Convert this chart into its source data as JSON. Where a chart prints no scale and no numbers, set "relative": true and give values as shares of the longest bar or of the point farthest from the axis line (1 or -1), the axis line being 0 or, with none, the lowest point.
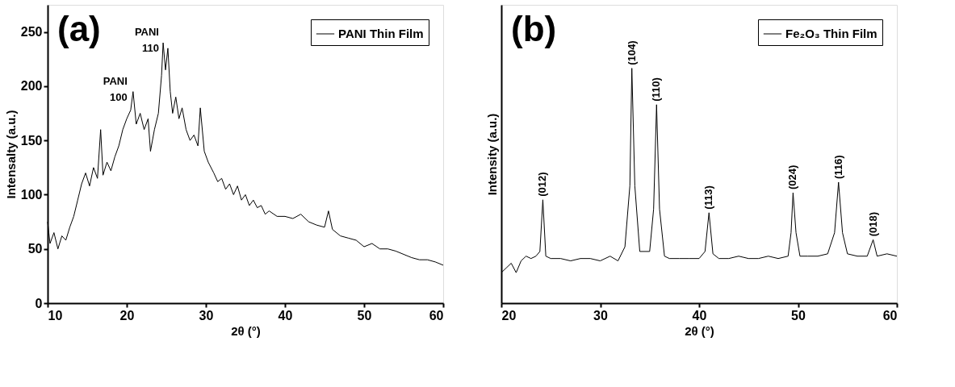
{
  "chart_data": [
    {
      "type": "line",
      "xlabel": "2θ (°)",
      "ylabel": "Intensalty (a.u.)",
      "xlim": [
        10,
        60
      ],
      "xticks": [
        10,
        20,
        30,
        40,
        50,
        60
      ],
      "ylim": [
        0,
        275
      ],
      "yticks": [
        0,
        50,
        100,
        150,
        200,
        250
      ],
      "legend": "top right",
      "grid": false,
      "annotations": [
        "(a)",
        {
          "text": "PANI\n100",
          "x": 21,
          "y": 195
        },
        {
          "text": "PANI\n110",
          "x": 25,
          "y": 240
        }
      ],
      "series": [
        {
          "name": "PANI Thin Film",
          "color": "#000000",
          "x": [
            10,
            10.3,
            10.8,
            11.3,
            11.8,
            12.3,
            12.8,
            13.3,
            13.8,
            14.3,
            14.8,
            15.3,
            15.8,
            16.3,
            16.7,
            17.0,
            17.5,
            18.0,
            18.5,
            19.0,
            19.5,
            20.0,
            20.5,
            20.8,
            21.2,
            21.7,
            22.2,
            22.7,
            23.0,
            23.5,
            24.0,
            24.4,
            24.6,
            24.9,
            25.2,
            25.5,
            25.8,
            26.2,
            26.6,
            27.0,
            27.5,
            28.0,
            28.5,
            29.0,
            29.3,
            29.8,
            30.3,
            31.0,
            31.5,
            32.0,
            32.5,
            33.0,
            33.5,
            34.0,
            34.5,
            35.0,
            35.5,
            36.0,
            36.5,
            37.0,
            37.5,
            38.0,
            39.0,
            40.0,
            41.0,
            42.0,
            43.0,
            44.0,
            45.0,
            45.5,
            46.0,
            47.0,
            48.0,
            49.0,
            50.0,
            51.0,
            52.0,
            53.0,
            54.0,
            55.0,
            56.0,
            57.0,
            58.0,
            59.0,
            60.0
          ],
          "values": [
            75,
            55,
            65,
            50,
            62,
            58,
            70,
            80,
            95,
            110,
            120,
            108,
            125,
            115,
            160,
            118,
            130,
            122,
            135,
            145,
            160,
            170,
            178,
            195,
            165,
            175,
            160,
            170,
            140,
            160,
            175,
            210,
            240,
            215,
            235,
            195,
            175,
            190,
            170,
            180,
            160,
            150,
            155,
            145,
            180,
            140,
            130,
            120,
            112,
            115,
            105,
            110,
            100,
            108,
            95,
            100,
            90,
            95,
            88,
            90,
            82,
            85,
            80,
            80,
            78,
            82,
            75,
            72,
            70,
            85,
            68,
            62,
            60,
            58,
            52,
            55,
            50,
            50,
            48,
            45,
            42,
            40,
            40,
            38,
            35
          ]
        }
      ]
    },
    {
      "type": "line",
      "relative": true,
      "xlabel": "2θ (°)",
      "ylabel": "Intensity (a.u.)",
      "xlim": [
        20,
        60
      ],
      "xticks": [
        20,
        30,
        40,
        50,
        60
      ],
      "tick_labels": "x",
      "legend": "top right",
      "grid": false,
      "annotations": [
        "(b)",
        {
          "text": "(012)",
          "x": 24.2,
          "y": 0.44
        },
        {
          "text": "(104)",
          "x": 33.2,
          "y": 1.0
        },
        {
          "text": "(110)",
          "x": 35.7,
          "y": 0.845
        },
        {
          "text": "(113)",
          "x": 41.0,
          "y": 0.385
        },
        {
          "text": "(024)",
          "x": 49.5,
          "y": 0.47
        },
        {
          "text": "(116)",
          "x": 54.1,
          "y": 0.515
        },
        {
          "text": "(018)",
          "x": 57.6,
          "y": 0.27
        }
      ],
      "series": [
        {
          "name": "Fe₂O₃ Thin Film",
          "color": "#000000",
          "x": [
            20,
            20.5,
            21,
            21.5,
            22,
            22.5,
            23,
            23.5,
            23.9,
            24.2,
            24.5,
            25,
            26,
            27,
            28,
            29,
            30,
            31,
            31.8,
            32.5,
            33.0,
            33.2,
            33.5,
            34,
            35,
            35.4,
            35.7,
            36.0,
            36.5,
            37,
            38,
            39,
            40,
            40.6,
            41.0,
            41.4,
            42,
            43,
            44,
            45,
            46,
            47,
            48,
            49,
            49.3,
            49.5,
            49.8,
            50.2,
            51,
            52,
            53,
            53.7,
            54.1,
            54.5,
            55,
            56,
            57,
            57.6,
            58,
            59,
            60
          ],
          "values": [
            0.13,
            0.15,
            0.17,
            0.13,
            0.18,
            0.2,
            0.19,
            0.2,
            0.22,
            0.44,
            0.2,
            0.19,
            0.19,
            0.18,
            0.19,
            0.19,
            0.18,
            0.2,
            0.18,
            0.24,
            0.5,
            1.0,
            0.5,
            0.22,
            0.22,
            0.4,
            0.845,
            0.4,
            0.2,
            0.19,
            0.19,
            0.19,
            0.19,
            0.22,
            0.385,
            0.21,
            0.19,
            0.19,
            0.2,
            0.19,
            0.19,
            0.2,
            0.19,
            0.2,
            0.3,
            0.47,
            0.3,
            0.2,
            0.2,
            0.2,
            0.21,
            0.3,
            0.515,
            0.3,
            0.21,
            0.2,
            0.2,
            0.27,
            0.2,
            0.21,
            0.2
          ]
        }
      ]
    }
  ]
}
